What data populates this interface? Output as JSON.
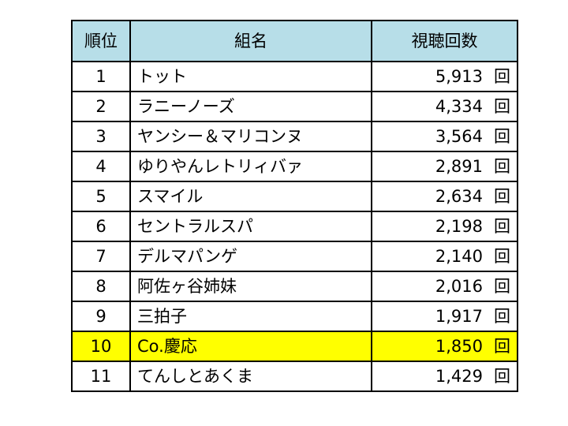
{
  "header_bg": "#b7dee8",
  "highlight_bg": "#ffff00",
  "columns": {
    "rank": "順位",
    "name": "組名",
    "views": "視聴回数"
  },
  "rows": [
    {
      "rank": "1",
      "name": "トット",
      "views": "5,913",
      "unit": "回",
      "highlight": false
    },
    {
      "rank": "2",
      "name": "ラニーノーズ",
      "views": "4,334",
      "unit": "回",
      "highlight": false
    },
    {
      "rank": "3",
      "name": "ヤンシー＆マリコンヌ",
      "views": "3,564",
      "unit": "回",
      "highlight": false
    },
    {
      "rank": "4",
      "name": "ゆりやんレトリィバァ",
      "views": "2,891",
      "unit": "回",
      "highlight": false
    },
    {
      "rank": "5",
      "name": "スマイル",
      "views": "2,634",
      "unit": "回",
      "highlight": false
    },
    {
      "rank": "6",
      "name": "セントラルスパ",
      "views": "2,198",
      "unit": "回",
      "highlight": false
    },
    {
      "rank": "7",
      "name": "デルマパンゲ",
      "views": "2,140",
      "unit": "回",
      "highlight": false
    },
    {
      "rank": "8",
      "name": "阿佐ヶ谷姉妹",
      "views": "2,016",
      "unit": "回",
      "highlight": false
    },
    {
      "rank": "9",
      "name": "三拍子",
      "views": "1,917",
      "unit": "回",
      "highlight": false
    },
    {
      "rank": "10",
      "name": "Co.慶応",
      "views": "1,850",
      "unit": "回",
      "highlight": true
    },
    {
      "rank": "11",
      "name": "てんしとあくま",
      "views": "1,429",
      "unit": "回",
      "highlight": false
    }
  ]
}
